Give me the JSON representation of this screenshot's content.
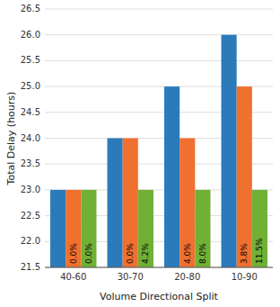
{
  "chart_data": {
    "type": "bar",
    "categories": [
      "40-60",
      "30-70",
      "20-80",
      "10-90"
    ],
    "series": [
      {
        "color": "#2b7bba",
        "values": [
          23.0,
          24.0,
          25.0,
          26.0
        ]
      },
      {
        "color": "#f07030",
        "values": [
          23.0,
          24.0,
          24.0,
          25.0
        ],
        "annotations": [
          "0.0%",
          "0.0%",
          "4.0%",
          "3.8%"
        ]
      },
      {
        "color": "#70b035",
        "values": [
          23.0,
          23.0,
          23.0,
          23.0
        ],
        "annotations": [
          "0.0%",
          "4.2%",
          "8.0%",
          "11.5%"
        ]
      }
    ],
    "xlabel": "Volume Directional Split",
    "ylabel": "Total Delay (hours)",
    "ylim": [
      21.5,
      26.5
    ],
    "yticks": [
      21.5,
      {
        "value": 22.0,
        "label": "22.0"
      },
      22.5,
      {
        "value": 23.0,
        "label": "23.0"
      },
      23.5,
      {
        "value": 24.0,
        "label": "24.0"
      },
      24.5,
      {
        "value": 25.0,
        "label": "25.0"
      },
      25.5,
      {
        "value": 26.0,
        "label": "26.0"
      },
      26.5
    ],
    "grid": true
  }
}
